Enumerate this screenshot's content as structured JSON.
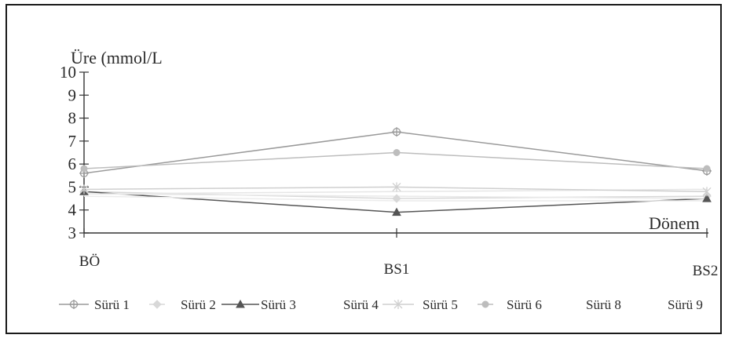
{
  "chart_data": {
    "type": "line",
    "ylabel": "Üre (mmol/L",
    "xlabel": "Dönem",
    "categories": [
      "BÖ",
      "BS1",
      "BS2"
    ],
    "ylim": [
      3,
      10
    ],
    "yticks": [
      "3",
      "4",
      "5",
      "6",
      "7",
      "8",
      "9",
      "10"
    ],
    "grid": false,
    "legend_position": "bottom",
    "series": [
      {
        "name": "Sürü 1",
        "values": [
          5.6,
          7.4,
          5.7
        ],
        "marker": "circle-cross",
        "color": "#9a9a9a"
      },
      {
        "name": "Sürü 2",
        "values": [
          4.8,
          4.5,
          4.6
        ],
        "marker": "diamond",
        "color": "#d8d8d8"
      },
      {
        "name": "Sürü 3",
        "values": [
          4.8,
          3.9,
          4.5
        ],
        "marker": "triangle",
        "color": "#555555"
      },
      {
        "name": "Sürü 4",
        "values": [
          4.7,
          4.8,
          4.9
        ],
        "marker": "none",
        "color": "#e6e6e6"
      },
      {
        "name": "Sürü 5",
        "values": [
          4.9,
          5.0,
          4.8
        ],
        "marker": "asterisk",
        "color": "#cfcfcf"
      },
      {
        "name": "Sürü 6",
        "values": [
          5.8,
          6.5,
          5.8
        ],
        "marker": "circle",
        "color": "#bdbdbd"
      },
      {
        "name": "Sürü 8",
        "values": [
          4.6,
          4.4,
          4.4
        ],
        "marker": "none",
        "color": "#ececec"
      },
      {
        "name": "Sürü 9",
        "values": [
          4.7,
          4.6,
          4.5
        ],
        "marker": "none",
        "color": "#e9e9e9"
      }
    ]
  }
}
